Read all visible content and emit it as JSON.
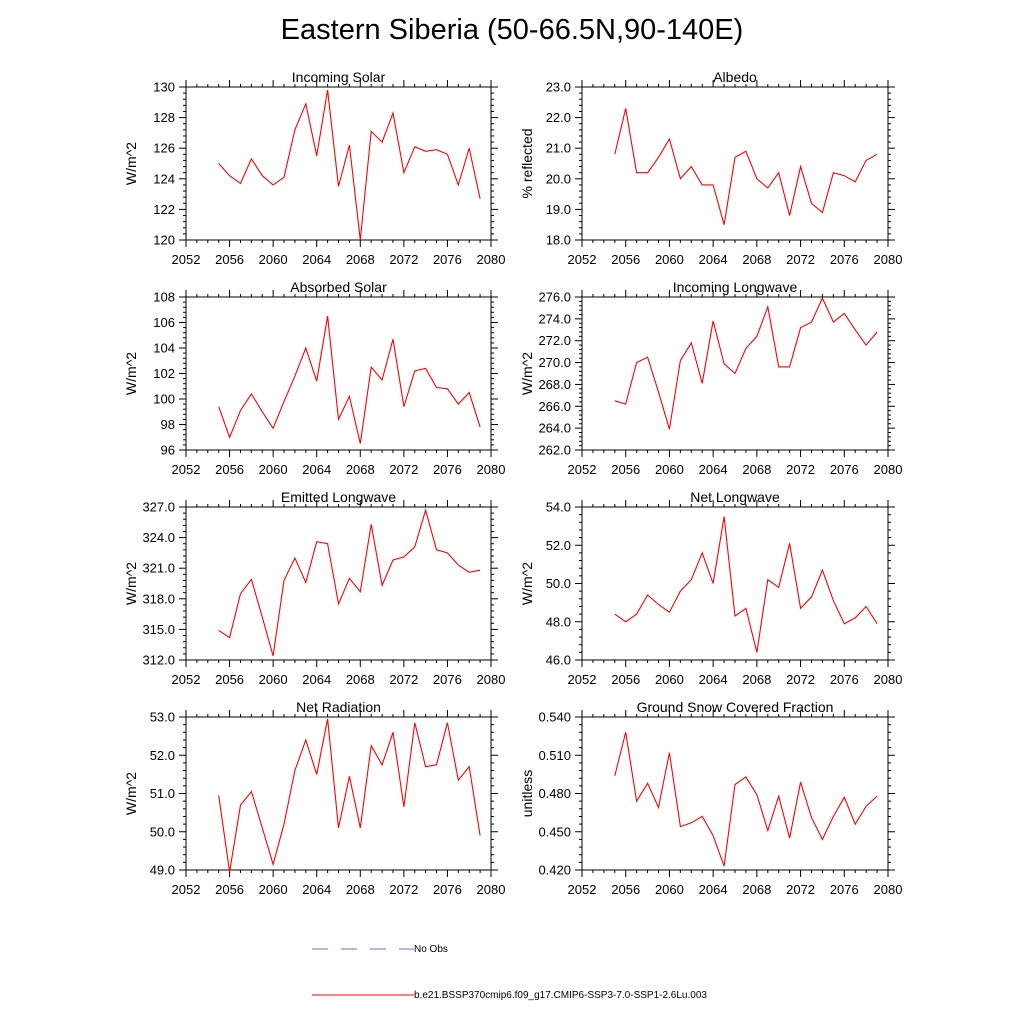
{
  "title": "Eastern Siberia (50-66.5N,90-140E)",
  "legend": {
    "obs_label": "No Obs",
    "obs_color": "#6a6fc0",
    "model_label": "b.e21.BSSP370cmip6.f09_g17.CMIP6-SSP3-7.0-SSP1-2.6Lu.003",
    "model_color": "#ff0000"
  },
  "chart_data": [
    {
      "type": "line",
      "title": "Incoming Solar",
      "ylabel": "W/m^2",
      "xlim": [
        2052,
        2080
      ],
      "xticks": [
        2052,
        2056,
        2060,
        2064,
        2068,
        2072,
        2076,
        2080
      ],
      "ylim": [
        120,
        130
      ],
      "yticks": [
        120,
        122,
        124,
        126,
        128,
        130
      ],
      "ytick_labels": [
        "120",
        "122",
        "124",
        "126",
        "128",
        "130"
      ],
      "x": [
        2055,
        2056,
        2057,
        2058,
        2059,
        2060,
        2061,
        2062,
        2063,
        2064,
        2065,
        2066,
        2067,
        2068,
        2069,
        2070,
        2071,
        2072,
        2073,
        2074,
        2075,
        2076,
        2077,
        2078,
        2079
      ],
      "series": [
        {
          "values": [
            125.0,
            124.2,
            123.7,
            125.3,
            124.2,
            123.6,
            124.1,
            127.2,
            128.9,
            125.5,
            129.8,
            123.5,
            126.2,
            120.0,
            127.1,
            126.4,
            128.3,
            124.4,
            126.1,
            125.8,
            125.9,
            125.6,
            123.6,
            126.0,
            122.7
          ]
        }
      ]
    },
    {
      "type": "line",
      "title": "Albedo",
      "ylabel": "% reflected",
      "xlim": [
        2052,
        2080
      ],
      "xticks": [
        2052,
        2056,
        2060,
        2064,
        2068,
        2072,
        2076,
        2080
      ],
      "ylim": [
        18,
        23
      ],
      "yticks": [
        18,
        19,
        20,
        21,
        22,
        23
      ],
      "ytick_labels": [
        "18.0",
        "19.0",
        "20.0",
        "21.0",
        "22.0",
        "23.0"
      ],
      "x": [
        2055,
        2056,
        2057,
        2058,
        2059,
        2060,
        2061,
        2062,
        2063,
        2064,
        2065,
        2066,
        2067,
        2068,
        2069,
        2070,
        2071,
        2072,
        2073,
        2074,
        2075,
        2076,
        2077,
        2078,
        2079
      ],
      "series": [
        {
          "values": [
            20.8,
            22.3,
            20.2,
            20.2,
            20.7,
            21.3,
            20.0,
            20.4,
            19.8,
            19.8,
            18.5,
            20.7,
            20.9,
            20.0,
            19.7,
            20.2,
            18.8,
            20.4,
            19.2,
            18.9,
            20.2,
            20.1,
            19.9,
            20.6,
            20.8
          ]
        }
      ]
    },
    {
      "type": "line",
      "title": "Absorbed Solar",
      "ylabel": "W/m^2",
      "xlim": [
        2052,
        2080
      ],
      "xticks": [
        2052,
        2056,
        2060,
        2064,
        2068,
        2072,
        2076,
        2080
      ],
      "ylim": [
        96,
        108
      ],
      "yticks": [
        96,
        98,
        100,
        102,
        104,
        106,
        108
      ],
      "ytick_labels": [
        "96",
        "98",
        "100",
        "102",
        "104",
        "106",
        "108"
      ],
      "x": [
        2055,
        2056,
        2057,
        2058,
        2059,
        2060,
        2061,
        2062,
        2063,
        2064,
        2065,
        2066,
        2067,
        2068,
        2069,
        2070,
        2071,
        2072,
        2073,
        2074,
        2075,
        2076,
        2077,
        2078,
        2079
      ],
      "series": [
        {
          "values": [
            99.4,
            97.0,
            99.1,
            100.4,
            99.0,
            97.7,
            99.8,
            101.8,
            104.0,
            101.4,
            106.5,
            98.4,
            100.2,
            96.5,
            102.5,
            101.5,
            104.7,
            99.4,
            102.2,
            102.4,
            100.9,
            100.8,
            99.6,
            100.5,
            97.8
          ]
        }
      ]
    },
    {
      "type": "line",
      "title": "Incoming Longwave",
      "ylabel": "W/m^2",
      "xlim": [
        2052,
        2080
      ],
      "xticks": [
        2052,
        2056,
        2060,
        2064,
        2068,
        2072,
        2076,
        2080
      ],
      "ylim": [
        262,
        276
      ],
      "yticks": [
        262,
        264,
        266,
        268,
        270,
        272,
        274,
        276
      ],
      "ytick_labels": [
        "262.0",
        "264.0",
        "266.0",
        "268.0",
        "270.0",
        "272.0",
        "274.0",
        "276.0"
      ],
      "x": [
        2055,
        2056,
        2057,
        2058,
        2059,
        2060,
        2061,
        2062,
        2063,
        2064,
        2065,
        2066,
        2067,
        2068,
        2069,
        2070,
        2071,
        2072,
        2073,
        2074,
        2075,
        2076,
        2077,
        2078,
        2079
      ],
      "series": [
        {
          "values": [
            266.5,
            266.2,
            270.0,
            270.5,
            267.3,
            263.9,
            270.2,
            271.8,
            268.1,
            273.8,
            269.9,
            269.0,
            271.3,
            272.4,
            275.1,
            269.6,
            269.6,
            273.2,
            273.7,
            275.9,
            273.7,
            274.5,
            273.0,
            271.6,
            272.8
          ]
        }
      ]
    },
    {
      "type": "line",
      "title": "Emitted Longwave",
      "ylabel": "W/m^2",
      "xlim": [
        2052,
        2080
      ],
      "xticks": [
        2052,
        2056,
        2060,
        2064,
        2068,
        2072,
        2076,
        2080
      ],
      "ylim": [
        312,
        327
      ],
      "yticks": [
        312,
        315,
        318,
        321,
        324,
        327
      ],
      "ytick_labels": [
        "312.0",
        "315.0",
        "318.0",
        "321.0",
        "324.0",
        "327.0"
      ],
      "x": [
        2055,
        2056,
        2057,
        2058,
        2059,
        2060,
        2061,
        2062,
        2063,
        2064,
        2065,
        2066,
        2067,
        2068,
        2069,
        2070,
        2071,
        2072,
        2073,
        2074,
        2075,
        2076,
        2077,
        2078,
        2079
      ],
      "series": [
        {
          "values": [
            314.9,
            314.2,
            318.5,
            319.9,
            316.2,
            312.4,
            319.8,
            322.0,
            319.6,
            323.6,
            323.4,
            317.5,
            320.0,
            318.7,
            325.3,
            319.3,
            321.8,
            322.1,
            323.1,
            326.7,
            322.8,
            322.5,
            321.3,
            320.6,
            320.8
          ]
        }
      ]
    },
    {
      "type": "line",
      "title": "Net Longwave",
      "ylabel": "W/m^2",
      "xlim": [
        2052,
        2080
      ],
      "xticks": [
        2052,
        2056,
        2060,
        2064,
        2068,
        2072,
        2076,
        2080
      ],
      "ylim": [
        46,
        54
      ],
      "yticks": [
        46,
        48,
        50,
        52,
        54
      ],
      "ytick_labels": [
        "46.0",
        "48.0",
        "50.0",
        "52.0",
        "54.0"
      ],
      "x": [
        2055,
        2056,
        2057,
        2058,
        2059,
        2060,
        2061,
        2062,
        2063,
        2064,
        2065,
        2066,
        2067,
        2068,
        2069,
        2070,
        2071,
        2072,
        2073,
        2074,
        2075,
        2076,
        2077,
        2078,
        2079
      ],
      "series": [
        {
          "values": [
            48.4,
            48.0,
            48.4,
            49.4,
            48.9,
            48.5,
            49.6,
            50.2,
            51.6,
            50.0,
            53.5,
            48.3,
            48.7,
            46.4,
            50.2,
            49.8,
            52.1,
            48.7,
            49.3,
            50.7,
            49.1,
            47.9,
            48.2,
            48.8,
            47.9
          ]
        }
      ]
    },
    {
      "type": "line",
      "title": "Net Radiation",
      "ylabel": "W/m^2",
      "xlim": [
        2052,
        2080
      ],
      "xticks": [
        2052,
        2056,
        2060,
        2064,
        2068,
        2072,
        2076,
        2080
      ],
      "ylim": [
        49,
        53
      ],
      "yticks": [
        49,
        50,
        51,
        52,
        53
      ],
      "ytick_labels": [
        "49.0",
        "50.0",
        "51.0",
        "52.0",
        "53.0"
      ],
      "x": [
        2055,
        2056,
        2057,
        2058,
        2059,
        2060,
        2061,
        2062,
        2063,
        2064,
        2065,
        2066,
        2067,
        2068,
        2069,
        2070,
        2071,
        2072,
        2073,
        2074,
        2075,
        2076,
        2077,
        2078,
        2079
      ],
      "series": [
        {
          "values": [
            50.95,
            48.95,
            50.7,
            51.05,
            50.1,
            49.15,
            50.2,
            51.6,
            52.4,
            51.5,
            52.95,
            50.1,
            51.45,
            50.1,
            52.25,
            51.75,
            52.6,
            50.65,
            52.85,
            51.7,
            51.75,
            52.85,
            51.35,
            51.7,
            49.9
          ]
        }
      ]
    },
    {
      "type": "line",
      "title": "Ground Snow Covered Fraction",
      "ylabel": "unitless",
      "xlim": [
        2052,
        2080
      ],
      "xticks": [
        2052,
        2056,
        2060,
        2064,
        2068,
        2072,
        2076,
        2080
      ],
      "ylim": [
        0.42,
        0.54
      ],
      "yticks": [
        0.42,
        0.45,
        0.48,
        0.51,
        0.54
      ],
      "ytick_labels": [
        "0.420",
        "0.450",
        "0.480",
        "0.510",
        "0.540"
      ],
      "x": [
        2055,
        2056,
        2057,
        2058,
        2059,
        2060,
        2061,
        2062,
        2063,
        2064,
        2065,
        2066,
        2067,
        2068,
        2069,
        2070,
        2071,
        2072,
        2073,
        2074,
        2075,
        2076,
        2077,
        2078,
        2079
      ],
      "series": [
        {
          "values": [
            0.494,
            0.528,
            0.474,
            0.488,
            0.469,
            0.512,
            0.454,
            0.457,
            0.462,
            0.447,
            0.423,
            0.487,
            0.493,
            0.479,
            0.451,
            0.478,
            0.445,
            0.489,
            0.461,
            0.444,
            0.462,
            0.477,
            0.456,
            0.47,
            0.478
          ]
        }
      ]
    }
  ]
}
